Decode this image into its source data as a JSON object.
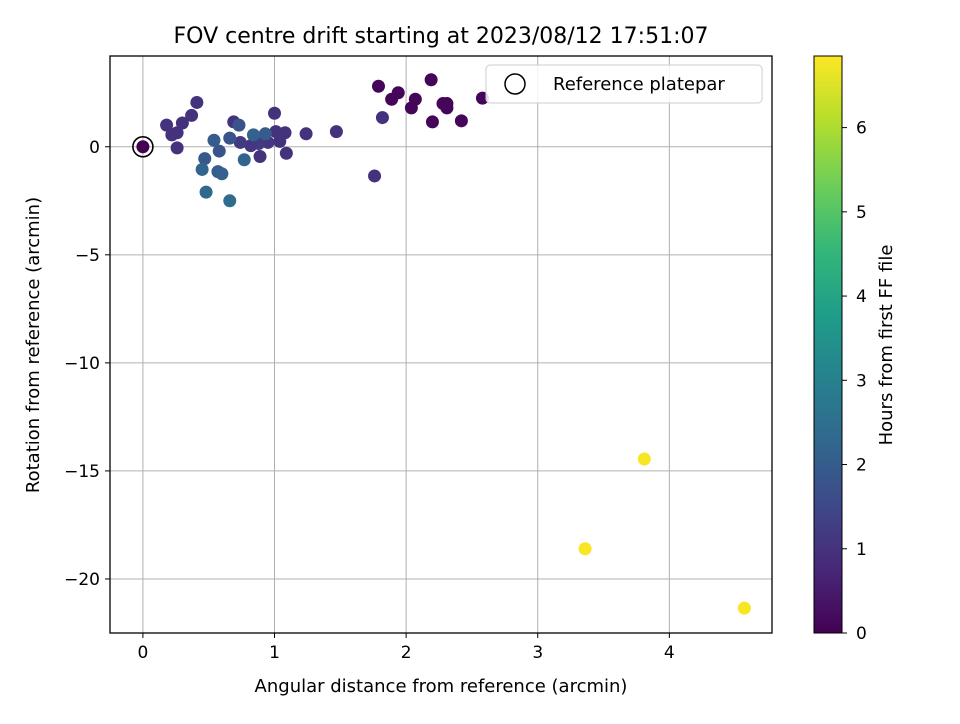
{
  "chart_data": {
    "type": "scatter",
    "title": "FOV centre drift starting at 2023/08/12 17:51:07",
    "xlabel": "Angular distance from reference (arcmin)",
    "ylabel": "Rotation from reference (arcmin)",
    "xlim": [
      -0.25,
      4.78
    ],
    "ylim": [
      -22.5,
      4.2
    ],
    "xticks": [
      0,
      1,
      2,
      3,
      4
    ],
    "yticks": [
      0,
      -5,
      -10,
      -15,
      -20
    ],
    "xtick_labels": [
      "0",
      "1",
      "2",
      "3",
      "4"
    ],
    "ytick_labels": [
      "0",
      "−5",
      "−10",
      "−15",
      "−20"
    ],
    "grid": true,
    "legend_position": "top-right",
    "legend_label": "Reference platepar",
    "colorbar": {
      "label": "Hours from first FF file",
      "range": [
        0,
        6.85
      ],
      "ticks": [
        0,
        1,
        2,
        3,
        4,
        5,
        6
      ],
      "tick_labels": [
        "0",
        "1",
        "2",
        "3",
        "4",
        "5",
        "6"
      ],
      "colormap": [
        "#440154",
        "#482878",
        "#3e4989",
        "#31688e",
        "#26828e",
        "#1f9e89",
        "#35b779",
        "#6ece58",
        "#b5de2b",
        "#fde725"
      ]
    },
    "points": [
      {
        "x": 1.79,
        "y": 2.8,
        "h": 0.1
      },
      {
        "x": 1.89,
        "y": 2.2,
        "h": 0.1
      },
      {
        "x": 1.94,
        "y": 2.5,
        "h": 0.1
      },
      {
        "x": 2.04,
        "y": 1.8,
        "h": 0.1
      },
      {
        "x": 2.07,
        "y": 2.2,
        "h": 0.1
      },
      {
        "x": 2.19,
        "y": 3.1,
        "h": 0.1
      },
      {
        "x": 2.2,
        "y": 1.15,
        "h": 0.1
      },
      {
        "x": 2.28,
        "y": 2.0,
        "h": 0.1
      },
      {
        "x": 2.31,
        "y": 1.8,
        "h": 0.1
      },
      {
        "x": 2.31,
        "y": 2.0,
        "h": 0.1
      },
      {
        "x": 2.42,
        "y": 1.2,
        "h": 0.1
      },
      {
        "x": 2.58,
        "y": 2.25,
        "h": 0.1
      },
      {
        "x": 1.82,
        "y": 1.35,
        "h": 1.0
      },
      {
        "x": 1.76,
        "y": -1.35,
        "h": 1.0
      },
      {
        "x": 1.47,
        "y": 0.7,
        "h": 1.0
      },
      {
        "x": 1.24,
        "y": 0.6,
        "h": 1.0
      },
      {
        "x": 1.09,
        "y": -0.3,
        "h": 1.0
      },
      {
        "x": 1.08,
        "y": 0.65,
        "h": 1.0
      },
      {
        "x": 1.04,
        "y": 0.25,
        "h": 1.0
      },
      {
        "x": 1.0,
        "y": 1.55,
        "h": 1.0
      },
      {
        "x": 1.01,
        "y": 0.7,
        "h": 1.0
      },
      {
        "x": 0.95,
        "y": 0.2,
        "h": 1.1
      },
      {
        "x": 0.89,
        "y": -0.45,
        "h": 1.0
      },
      {
        "x": 0.88,
        "y": 0.15,
        "h": 1.2
      },
      {
        "x": 0.82,
        "y": 0.05,
        "h": 1.1
      },
      {
        "x": 0.74,
        "y": 0.2,
        "h": 1.2
      },
      {
        "x": 0.69,
        "y": 1.15,
        "h": 1.0
      },
      {
        "x": 0.41,
        "y": 2.05,
        "h": 1.0
      },
      {
        "x": 0.37,
        "y": 1.45,
        "h": 1.0
      },
      {
        "x": 0.3,
        "y": 1.1,
        "h": 1.0
      },
      {
        "x": 0.22,
        "y": 0.55,
        "h": 1.0
      },
      {
        "x": 0.26,
        "y": 0.65,
        "h": 1.0
      },
      {
        "x": 0.18,
        "y": 1.0,
        "h": 1.0
      },
      {
        "x": 0.26,
        "y": -0.05,
        "h": 1.0
      },
      {
        "x": 0.54,
        "y": 0.3,
        "h": 2.0
      },
      {
        "x": 0.58,
        "y": -0.2,
        "h": 1.8
      },
      {
        "x": 0.47,
        "y": -0.55,
        "h": 1.9
      },
      {
        "x": 0.45,
        "y": -1.05,
        "h": 2.2
      },
      {
        "x": 0.57,
        "y": -1.15,
        "h": 2.0
      },
      {
        "x": 0.6,
        "y": -1.25,
        "h": 2.1
      },
      {
        "x": 0.48,
        "y": -2.1,
        "h": 2.3
      },
      {
        "x": 0.66,
        "y": -2.5,
        "h": 2.4
      },
      {
        "x": 0.66,
        "y": 0.4,
        "h": 1.8
      },
      {
        "x": 0.73,
        "y": 1.0,
        "h": 1.8
      },
      {
        "x": 0.77,
        "y": -0.6,
        "h": 2.2
      },
      {
        "x": 0.84,
        "y": 0.55,
        "h": 2.1
      },
      {
        "x": 0.93,
        "y": 0.6,
        "h": 2.0
      },
      {
        "x": 3.36,
        "y": -18.6,
        "h": 6.8
      },
      {
        "x": 3.81,
        "y": -14.45,
        "h": 6.8
      },
      {
        "x": 4.57,
        "y": -21.35,
        "h": 6.8
      },
      {
        "x": 0.0,
        "y": 0.0,
        "h": 0.0
      }
    ],
    "reference_point": {
      "x": 0.0,
      "y": 0.0
    }
  }
}
